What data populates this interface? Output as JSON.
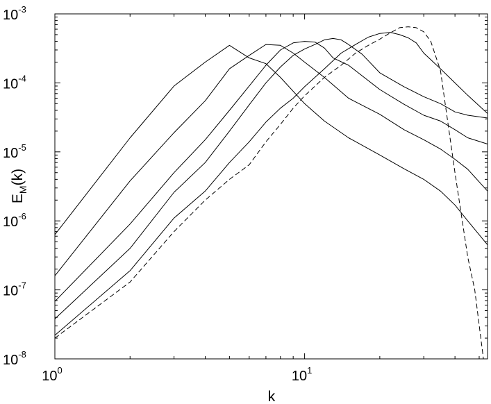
{
  "chart_data": {
    "type": "line",
    "title": "",
    "xlabel": "k",
    "ylabel": {
      "main": "E",
      "sub": "M",
      "tail": "(k)"
    },
    "x_scale": "log",
    "y_scale": "log",
    "xlim": [
      1,
      54
    ],
    "ylim": [
      1e-08,
      0.001
    ],
    "x_ticks": [
      {
        "value": 1,
        "base": "10",
        "exp": "0"
      },
      {
        "value": 10,
        "base": "10",
        "exp": "1"
      }
    ],
    "y_ticks": [
      {
        "value": 1e-08,
        "base": "10",
        "exp": "-8"
      },
      {
        "value": 1e-07,
        "base": "10",
        "exp": "-7"
      },
      {
        "value": 1e-06,
        "base": "10",
        "exp": "-6"
      },
      {
        "value": 1e-05,
        "base": "10",
        "exp": "-5"
      },
      {
        "value": 0.0001,
        "base": "10",
        "exp": "-4"
      },
      {
        "value": 0.001,
        "base": "10",
        "exp": "-3"
      }
    ],
    "grid": false,
    "legend": "none",
    "line_color": "#000000",
    "series": [
      {
        "style": "solid",
        "x": [
          1,
          2,
          3,
          4,
          5,
          6,
          7,
          8,
          10,
          12,
          15,
          20,
          25,
          30,
          35,
          40,
          45,
          54
        ],
        "y": [
          6.3e-07,
          1.6e-05,
          9e-05,
          0.0002,
          0.00035,
          0.00023,
          0.00019,
          0.00012,
          5e-05,
          2.8e-05,
          1.6e-05,
          9e-06,
          5.7e-06,
          4e-06,
          2.7e-06,
          1.7e-06,
          1e-06,
          4.5e-07
        ]
      },
      {
        "style": "solid",
        "x": [
          1,
          2,
          3,
          4,
          5,
          6,
          7,
          8,
          9,
          10,
          12,
          15,
          20,
          25,
          30,
          35,
          40,
          45,
          54
        ],
        "y": [
          1.6e-07,
          3.8e-06,
          1.9e-05,
          5.5e-05,
          0.00016,
          0.00025,
          0.00036,
          0.00035,
          0.00027,
          0.0002,
          0.00012,
          6e-05,
          3.5e-05,
          2.1e-05,
          1.5e-05,
          1.1e-05,
          7.8e-06,
          5.6e-06,
          2.7e-06
        ]
      },
      {
        "style": "solid",
        "x": [
          1,
          2,
          3,
          4,
          5,
          6,
          7,
          8,
          9,
          10,
          11,
          12,
          13,
          15,
          20,
          25,
          30,
          35,
          40,
          45,
          54
        ],
        "y": [
          6.8e-08,
          9e-07,
          5e-06,
          1.5e-05,
          4e-05,
          9e-05,
          0.00018,
          0.0003,
          0.00038,
          0.0004,
          0.00039,
          0.00032,
          0.00023,
          0.00018,
          8e-05,
          4.9e-05,
          3.4e-05,
          2.8e-05,
          2.1e-05,
          1.6e-05,
          1.3e-05
        ]
      },
      {
        "style": "solid",
        "x": [
          1,
          2,
          3,
          4,
          5,
          6,
          7,
          8,
          9,
          10,
          11,
          12,
          13,
          14,
          15,
          17,
          20,
          25,
          30,
          35,
          40,
          45,
          54
        ],
        "y": [
          3.8e-08,
          4e-07,
          2.6e-06,
          7e-06,
          2e-05,
          4.8e-05,
          0.0001,
          0.00017,
          0.00025,
          0.00031,
          0.00036,
          0.00042,
          0.00044,
          0.00042,
          0.00036,
          0.00026,
          0.00014,
          8.8e-05,
          6.3e-05,
          5e-05,
          3.8e-05,
          3.4e-05,
          3.1e-05
        ]
      },
      {
        "style": "solid",
        "x": [
          1,
          2,
          3,
          4,
          5,
          6,
          7,
          8,
          9,
          10,
          12,
          14,
          16,
          18,
          20,
          22,
          24,
          26,
          28,
          30,
          35,
          40,
          45,
          54
        ],
        "y": [
          2.2e-08,
          1.9e-07,
          1.1e-06,
          2.7e-06,
          7e-06,
          1.4e-05,
          2.7e-05,
          4.3e-05,
          6e-05,
          8.8e-05,
          0.00016,
          0.00027,
          0.00036,
          0.00046,
          0.00052,
          0.00054,
          0.0005,
          0.00045,
          0.00038,
          0.00027,
          0.00016,
          0.0001,
          6.6e-05,
          3.6e-05
        ]
      },
      {
        "style": "dashed",
        "x": [
          1,
          2,
          3,
          4,
          5,
          6,
          7,
          8,
          9,
          10,
          12,
          14,
          16,
          18,
          20,
          22,
          24,
          26,
          28,
          30,
          32,
          35,
          40,
          45,
          48,
          52
        ],
        "y": [
          2e-08,
          1.3e-07,
          7e-07,
          2e-06,
          4e-06,
          6.5e-06,
          1.4e-05,
          2.5e-05,
          4.3e-05,
          6.5e-05,
          0.00012,
          0.00018,
          0.00027,
          0.00035,
          0.00043,
          0.00053,
          0.00063,
          0.00065,
          0.00063,
          0.00055,
          0.0004,
          0.00015,
          5e-06,
          3e-07,
          1e-07,
          1e-08
        ]
      }
    ]
  }
}
